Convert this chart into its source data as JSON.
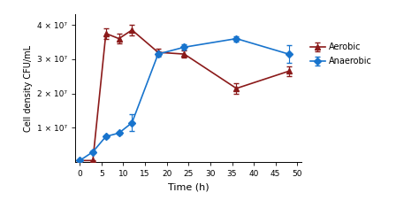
{
  "aerobic_x": [
    0,
    3,
    6,
    9,
    12,
    18,
    24,
    36,
    48
  ],
  "aerobic_y": [
    500000.0,
    500000.0,
    37500000.0,
    36000000.0,
    38500000.0,
    32000000.0,
    31500000.0,
    21500000.0,
    26500000.0
  ],
  "aerobic_yerr": [
    200000.0,
    200000.0,
    1500000.0,
    1500000.0,
    1500000.0,
    1000000.0,
    1000000.0,
    1500000.0,
    1500000.0
  ],
  "anaerobic_x": [
    0,
    3,
    6,
    9,
    12,
    18,
    24,
    36,
    48
  ],
  "anaerobic_y": [
    500000.0,
    3000000.0,
    7500000.0,
    8500000.0,
    11500000.0,
    31500000.0,
    33500000.0,
    36000000.0,
    31500000.0
  ],
  "anaerobic_yerr": [
    200000.0,
    400000.0,
    400000.0,
    400000.0,
    2500000.0,
    800000.0,
    800000.0,
    800000.0,
    2500000.0
  ],
  "aerobic_color": "#8B1A1A",
  "anaerobic_color": "#1874CD",
  "xlabel": "Time (h)",
  "ylabel": "Cell density CFU/mL",
  "xlim": [
    -1,
    51
  ],
  "ylim": [
    0,
    43000000.0
  ],
  "xticks": [
    0,
    5,
    10,
    15,
    20,
    25,
    30,
    35,
    40,
    45,
    50
  ],
  "ytick_vals": [
    10000000.0,
    20000000.0,
    30000000.0,
    40000000.0
  ],
  "ytick_labels": [
    "1 × 10⁷",
    "2 × 10⁷",
    "3 × 10⁷",
    "4 × 10⁷"
  ],
  "legend_aerobic": "Aerobic",
  "legend_anaerobic": "Anaerobic",
  "marker_aerobic": "^",
  "marker_anaerobic": "D",
  "markersize": 4,
  "linewidth": 1.2,
  "capsize": 2,
  "elinewidth": 0.8,
  "figwidth": 4.74,
  "figheight": 2.35,
  "dpi": 100
}
